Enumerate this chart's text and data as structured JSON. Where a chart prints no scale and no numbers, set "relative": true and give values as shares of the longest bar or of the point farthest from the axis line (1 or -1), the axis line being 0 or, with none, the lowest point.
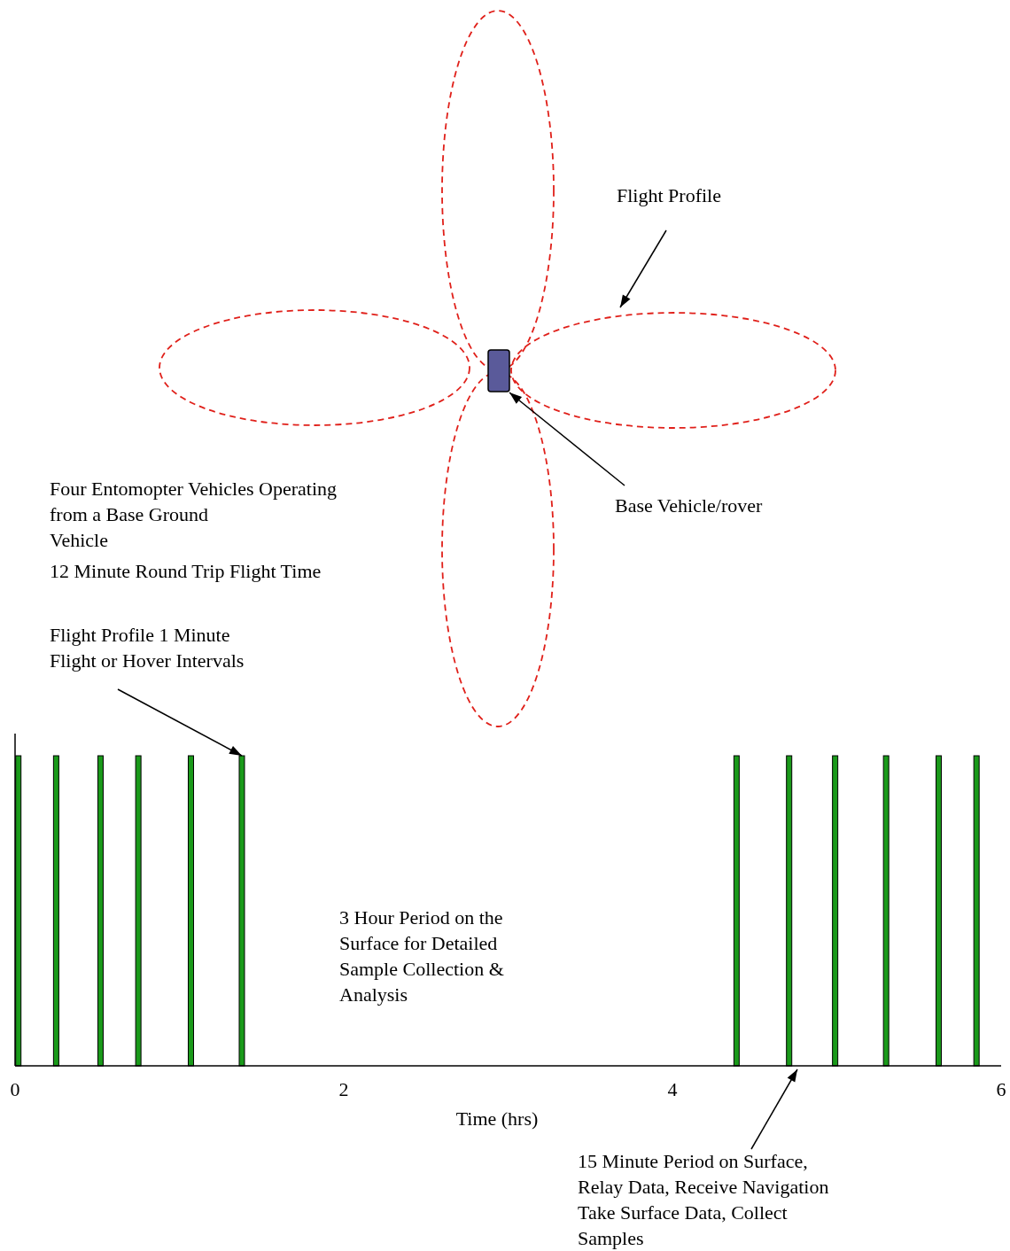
{
  "chart_data": {
    "type": "bar",
    "relative": true,
    "xlabel": "Time (hrs)",
    "x": [
      0.02,
      0.25,
      0.52,
      0.75,
      1.07,
      1.38,
      4.39,
      4.71,
      4.99,
      5.3,
      5.62,
      5.85
    ],
    "values": [
      1,
      1,
      1,
      1,
      1,
      1,
      1,
      1,
      1,
      1,
      1,
      1
    ],
    "color": "#1a9a1a",
    "xlim": [
      0,
      6
    ],
    "xticks": [
      0,
      2,
      4,
      6
    ],
    "tick_labels": "x",
    "grid": false,
    "annotations": [
      "Flight Profile",
      "Base Vehicle/rover",
      "Four Entomopter Vehicles Operating\nfrom a Base Ground\nVehicle",
      "12 Minute Round Trip Flight Time",
      {
        "text": "Flight Profile 1 Minute\nFlight or Hover Intervals",
        "x": 1.38,
        "y": 1
      },
      "3 Hour Period on the\nSurface for Detailed\nSample Collection &\nAnalysis",
      "15 Minute Period on Surface,\nRelay Data, Receive Navigation\nTake Surface Data, Collect\nSamples"
    ]
  }
}
